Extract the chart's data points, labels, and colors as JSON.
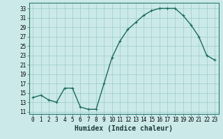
{
  "x": [
    0,
    1,
    2,
    3,
    4,
    5,
    6,
    7,
    8,
    9,
    10,
    11,
    12,
    13,
    14,
    15,
    16,
    17,
    18,
    19,
    20,
    21,
    22,
    23
  ],
  "y": [
    14,
    14.5,
    13.5,
    13,
    16,
    16,
    12,
    11.5,
    11.5,
    17,
    22.5,
    26,
    28.5,
    30,
    31.5,
    32.5,
    33,
    33,
    33,
    31.5,
    29.5,
    27,
    23,
    22
  ],
  "line_color": "#1a6b5a",
  "marker": "+",
  "marker_size": 3,
  "bg_color": "#cce9e9",
  "grid_color": "#99cccc",
  "xlabel": "Humidex (Indice chaleur)",
  "xlabel_fontsize": 7,
  "yticks": [
    11,
    13,
    15,
    17,
    19,
    21,
    23,
    25,
    27,
    29,
    31,
    33
  ],
  "xticks": [
    0,
    1,
    2,
    3,
    4,
    5,
    6,
    7,
    8,
    9,
    10,
    11,
    12,
    13,
    14,
    15,
    16,
    17,
    18,
    19,
    20,
    21,
    22,
    23
  ],
  "ylim": [
    10.5,
    34.2
  ],
  "xlim": [
    -0.5,
    23.5
  ],
  "tick_fontsize": 5.5,
  "line_width": 1.0
}
